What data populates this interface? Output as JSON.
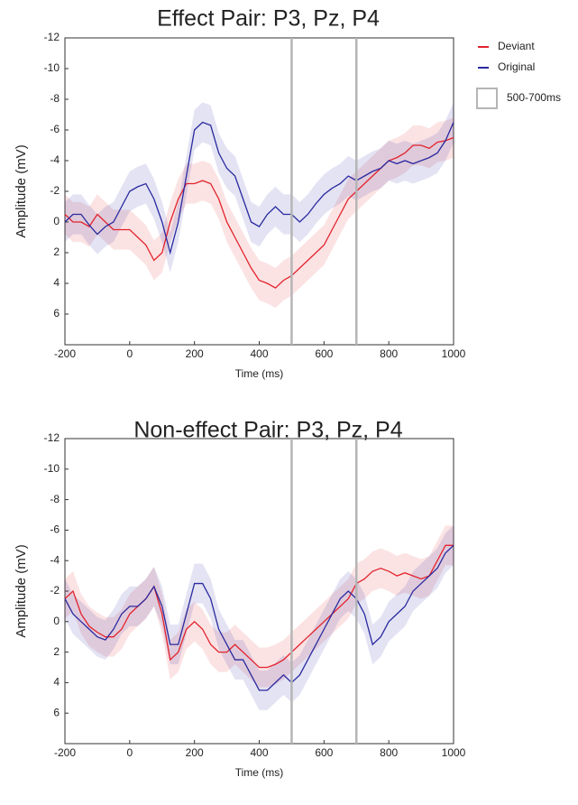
{
  "chart_data": [
    {
      "type": "line",
      "title": "Effect Pair: P3, Pz, P4",
      "x_label": "Time (ms)",
      "y_label": "Amplitude (mV)",
      "x": [
        -200,
        -175,
        -150,
        -125,
        -100,
        -75,
        -50,
        -25,
        0,
        25,
        50,
        75,
        100,
        125,
        150,
        175,
        200,
        225,
        250,
        275,
        300,
        325,
        350,
        375,
        400,
        425,
        450,
        475,
        500,
        525,
        550,
        575,
        600,
        625,
        650,
        675,
        700,
        725,
        750,
        775,
        800,
        825,
        850,
        875,
        900,
        925,
        950,
        975,
        1000
      ],
      "series": [
        {
          "name": "Deviant",
          "color": "#e3232c",
          "error": 1.3,
          "values": [
            -0.5,
            0,
            0,
            0.3,
            -0.5,
            0,
            0.5,
            0.5,
            0.5,
            1,
            1.5,
            2.5,
            2,
            0,
            -1.5,
            -2.5,
            -2.5,
            -2.7,
            -2.5,
            -1.5,
            0,
            1,
            2,
            3,
            3.8,
            4,
            4.3,
            3.8,
            3.5,
            3,
            2.5,
            2,
            1.5,
            0.5,
            -0.5,
            -1.5,
            -2,
            -2.5,
            -3,
            -3.5,
            -4,
            -4.2,
            -4.5,
            -5,
            -5,
            -4.8,
            -5.2,
            -5.3,
            -5.5
          ]
        },
        {
          "name": "Original",
          "color": "#2a2aa0",
          "error": 1.3,
          "values": [
            0,
            -0.5,
            -0.5,
            0.2,
            0.8,
            0.3,
            0,
            -1,
            -2,
            -2.3,
            -2.5,
            -1.5,
            0,
            2,
            0,
            -3,
            -6,
            -6.5,
            -6.3,
            -4.5,
            -3.5,
            -3,
            -1.5,
            0,
            0.3,
            -0.5,
            -1,
            -0.5,
            -0.5,
            0,
            -0.5,
            -1.2,
            -1.8,
            -2.2,
            -2.5,
            -3,
            -2.7,
            -3,
            -3.3,
            -3.5,
            -4,
            -3.8,
            -4,
            -3.8,
            -4,
            -4.2,
            -4.5,
            -5.3,
            -6.5
          ]
        }
      ],
      "window": [
        500,
        700
      ],
      "window_label": "500-700ms",
      "legend": "right",
      "xlim": [
        -200,
        1000
      ],
      "xticks": [
        -200,
        0,
        200,
        400,
        600,
        800,
        1000
      ],
      "ylim": [
        -12,
        8
      ],
      "yticks": [
        -12,
        -10,
        -8,
        -6,
        -4,
        -2,
        0,
        2,
        4,
        6
      ],
      "y_inverted": true
    },
    {
      "type": "line",
      "title": "Non-effect Pair: P3, Pz, P4",
      "x_label": "Time (ms)",
      "y_label": "Amplitude (mV)",
      "x": [
        -200,
        -175,
        -150,
        -125,
        -100,
        -75,
        -50,
        -25,
        0,
        25,
        50,
        75,
        100,
        125,
        150,
        175,
        200,
        225,
        250,
        275,
        300,
        325,
        350,
        375,
        400,
        425,
        450,
        475,
        500,
        525,
        550,
        575,
        600,
        625,
        650,
        675,
        700,
        725,
        750,
        775,
        800,
        825,
        850,
        875,
        900,
        925,
        950,
        975,
        1000
      ],
      "series": [
        {
          "name": "Deviant",
          "color": "#e3232c",
          "error": 1.3,
          "values": [
            -1.5,
            -2,
            -0.5,
            0.3,
            0.7,
            1,
            1,
            0.5,
            -0.5,
            -1,
            -1.5,
            -2.3,
            -0.5,
            2.5,
            2,
            0.5,
            0,
            0.5,
            1.5,
            2,
            2,
            1.5,
            2,
            2.5,
            3,
            3,
            2.8,
            2.5,
            2,
            1.5,
            1,
            0.5,
            0,
            -0.5,
            -1,
            -1.5,
            -2.5,
            -2.8,
            -3.3,
            -3.5,
            -3.3,
            -3,
            -3.2,
            -3,
            -2.8,
            -3,
            -4,
            -5,
            -5
          ]
        },
        {
          "name": "Original",
          "color": "#2a2aa0",
          "error": 1.3,
          "values": [
            -1.5,
            -0.5,
            0,
            0.5,
            1,
            1.2,
            0.5,
            -0.5,
            -1,
            -1,
            -1.5,
            -2.3,
            -1,
            1.5,
            1.5,
            -0.5,
            -2.5,
            -2.5,
            -1.5,
            0.5,
            1.5,
            2.5,
            2.5,
            3.5,
            4.5,
            4.5,
            4,
            3.5,
            4,
            3.5,
            2.5,
            1.5,
            0.5,
            -0.5,
            -1.5,
            -2,
            -1.5,
            -0.5,
            1.5,
            1,
            0,
            -0.5,
            -1,
            -2,
            -2.5,
            -3,
            -3.5,
            -4.5,
            -5
          ]
        }
      ],
      "window": [
        500,
        700
      ],
      "xlim": [
        -200,
        1000
      ],
      "xticks": [
        -200,
        0,
        200,
        400,
        600,
        800,
        1000
      ],
      "ylim": [
        -12,
        8
      ],
      "yticks": [
        -12,
        -10,
        -8,
        -6,
        -4,
        -2,
        0,
        2,
        4,
        6
      ],
      "y_inverted": true
    }
  ]
}
